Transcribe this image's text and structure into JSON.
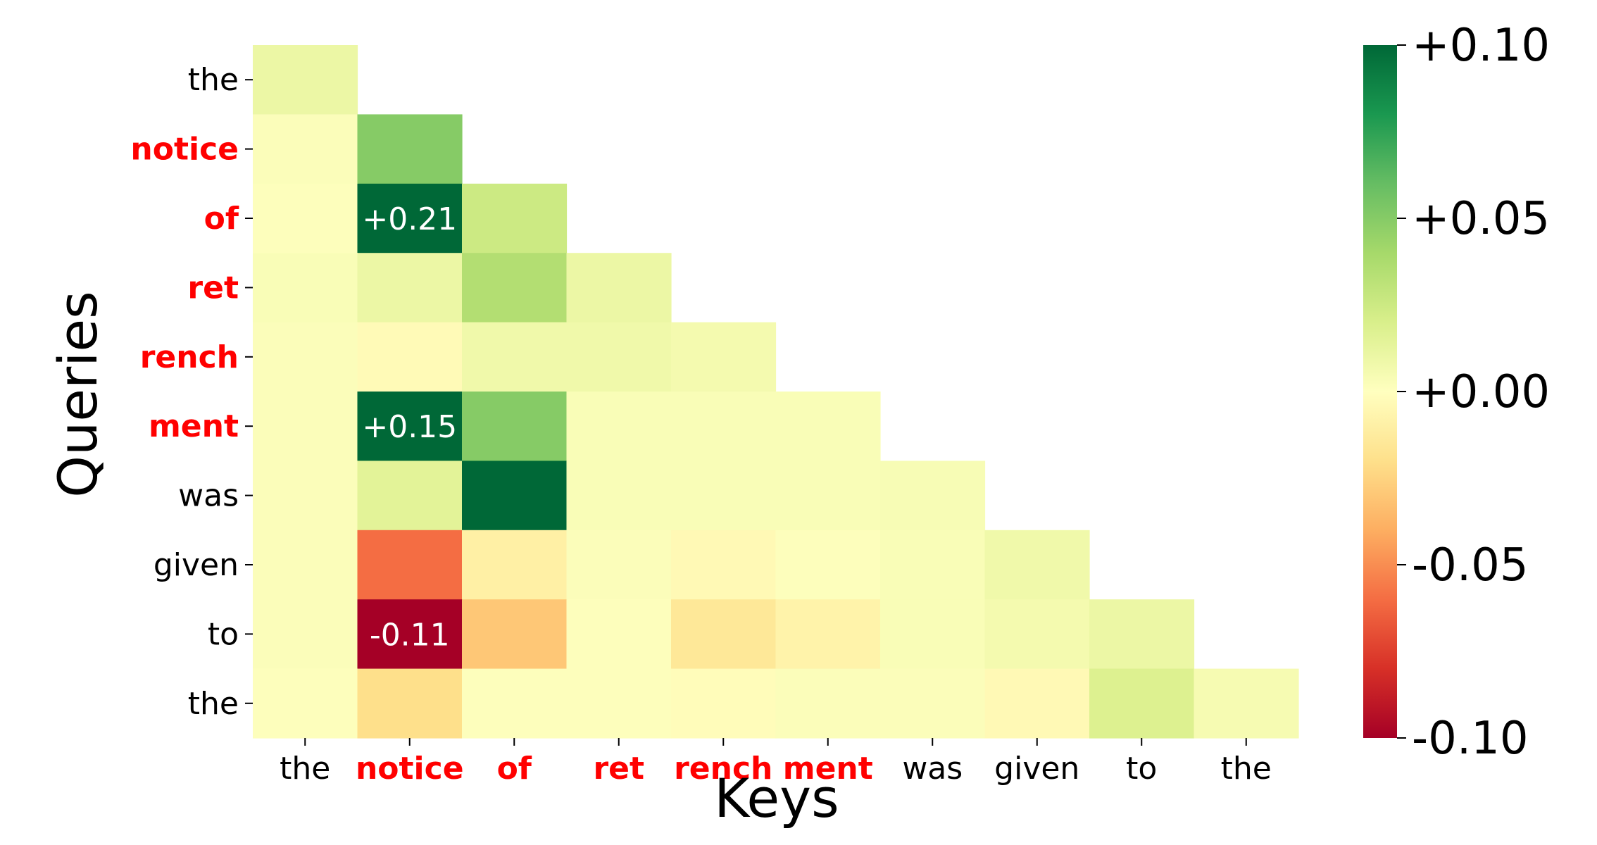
{
  "chart_data": {
    "type": "heatmap",
    "xlabel": "Keys",
    "ylabel": "Queries",
    "rows": [
      "the",
      "notice",
      "of",
      "ret",
      "rench",
      "ment",
      "was",
      "given",
      "to",
      "the"
    ],
    "cols": [
      "the",
      "notice",
      "of",
      "ret",
      "rench",
      "ment",
      "was",
      "given",
      "to",
      "the"
    ],
    "highlighted_tokens": [
      false,
      true,
      true,
      true,
      true,
      true,
      false,
      false,
      false,
      false
    ],
    "highlight_color": "#ff0000",
    "mask": "upper-triangle",
    "values": [
      [
        0.01
      ],
      [
        0.002,
        0.05
      ],
      [
        0.001,
        0.21,
        0.025
      ],
      [
        0.003,
        0.01,
        0.035,
        0.01
      ],
      [
        0.002,
        -0.003,
        0.008,
        0.008,
        0.006
      ],
      [
        0.002,
        0.15,
        0.05,
        0.003,
        0.003,
        0.003
      ],
      [
        0.002,
        0.015,
        0.12,
        0.003,
        0.003,
        0.003,
        0.004
      ],
      [
        0.002,
        -0.06,
        -0.01,
        0.002,
        -0.004,
        0.001,
        0.003,
        0.008
      ],
      [
        0.002,
        -0.11,
        -0.03,
        0.001,
        -0.015,
        -0.008,
        0.003,
        0.006,
        0.01
      ],
      [
        0.001,
        -0.02,
        0.001,
        0.001,
        -0.002,
        0.002,
        0.002,
        -0.004,
        0.018,
        0.005
      ]
    ],
    "annotations": [
      {
        "row": 2,
        "col": 1,
        "text": "+0.21"
      },
      {
        "row": 5,
        "col": 1,
        "text": "+0.15"
      },
      {
        "row": 8,
        "col": 1,
        "text": "-0.11"
      }
    ],
    "colormap": "RdYlGn",
    "vmin": -0.1,
    "vmax": 0.1,
    "colorbar_ticks": [
      {
        "value": 0.1,
        "label": "+0.10"
      },
      {
        "value": 0.05,
        "label": "+0.05"
      },
      {
        "value": 0.0,
        "label": "+0.00"
      },
      {
        "value": -0.05,
        "label": "-0.05"
      },
      {
        "value": -0.1,
        "label": "-0.10"
      }
    ]
  }
}
